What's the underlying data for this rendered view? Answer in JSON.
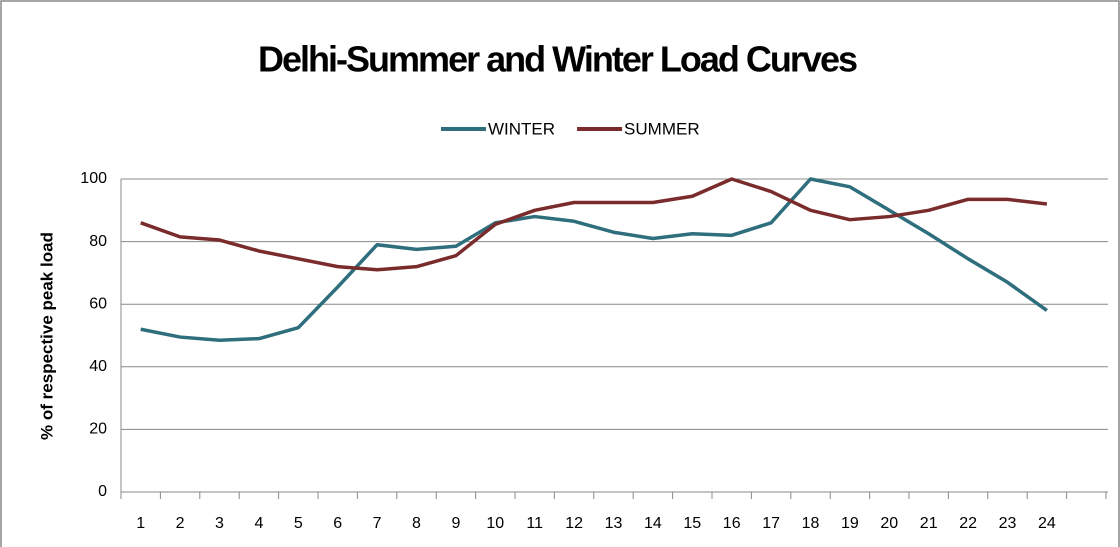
{
  "chart_data": {
    "type": "line",
    "title": "Delhi-Summer and Winter Load Curves",
    "y_label": "% of respective peak load",
    "categories": [
      "1",
      "2",
      "3",
      "4",
      "5",
      "6",
      "7",
      "8",
      "9",
      "10",
      "11",
      "12",
      "13",
      "14",
      "15",
      "16",
      "17",
      "18",
      "19",
      "20",
      "21",
      "22",
      "23",
      "24"
    ],
    "series": [
      {
        "name": "WINTER",
        "color": "#2f6e7c",
        "values": [
          52,
          49.5,
          48.5,
          49,
          52.5,
          65.5,
          79,
          77.5,
          78.5,
          86,
          88,
          86.5,
          83,
          81,
          82.5,
          82,
          86,
          100,
          97.5,
          90,
          82.5,
          74.5,
          67,
          58
        ]
      },
      {
        "name": "SUMMER",
        "color": "#7a2b2b",
        "values": [
          86,
          81.5,
          80.5,
          77,
          74.5,
          72,
          71,
          72,
          75.5,
          85.5,
          90,
          92.5,
          92.5,
          92.5,
          94.5,
          100,
          96,
          90,
          87,
          88,
          90,
          93.5,
          93.5,
          92
        ]
      }
    ],
    "ylim": [
      0,
      100
    ],
    "yticks": [
      0,
      20,
      40,
      60,
      80,
      100
    ],
    "grid": true,
    "legend": "top"
  }
}
